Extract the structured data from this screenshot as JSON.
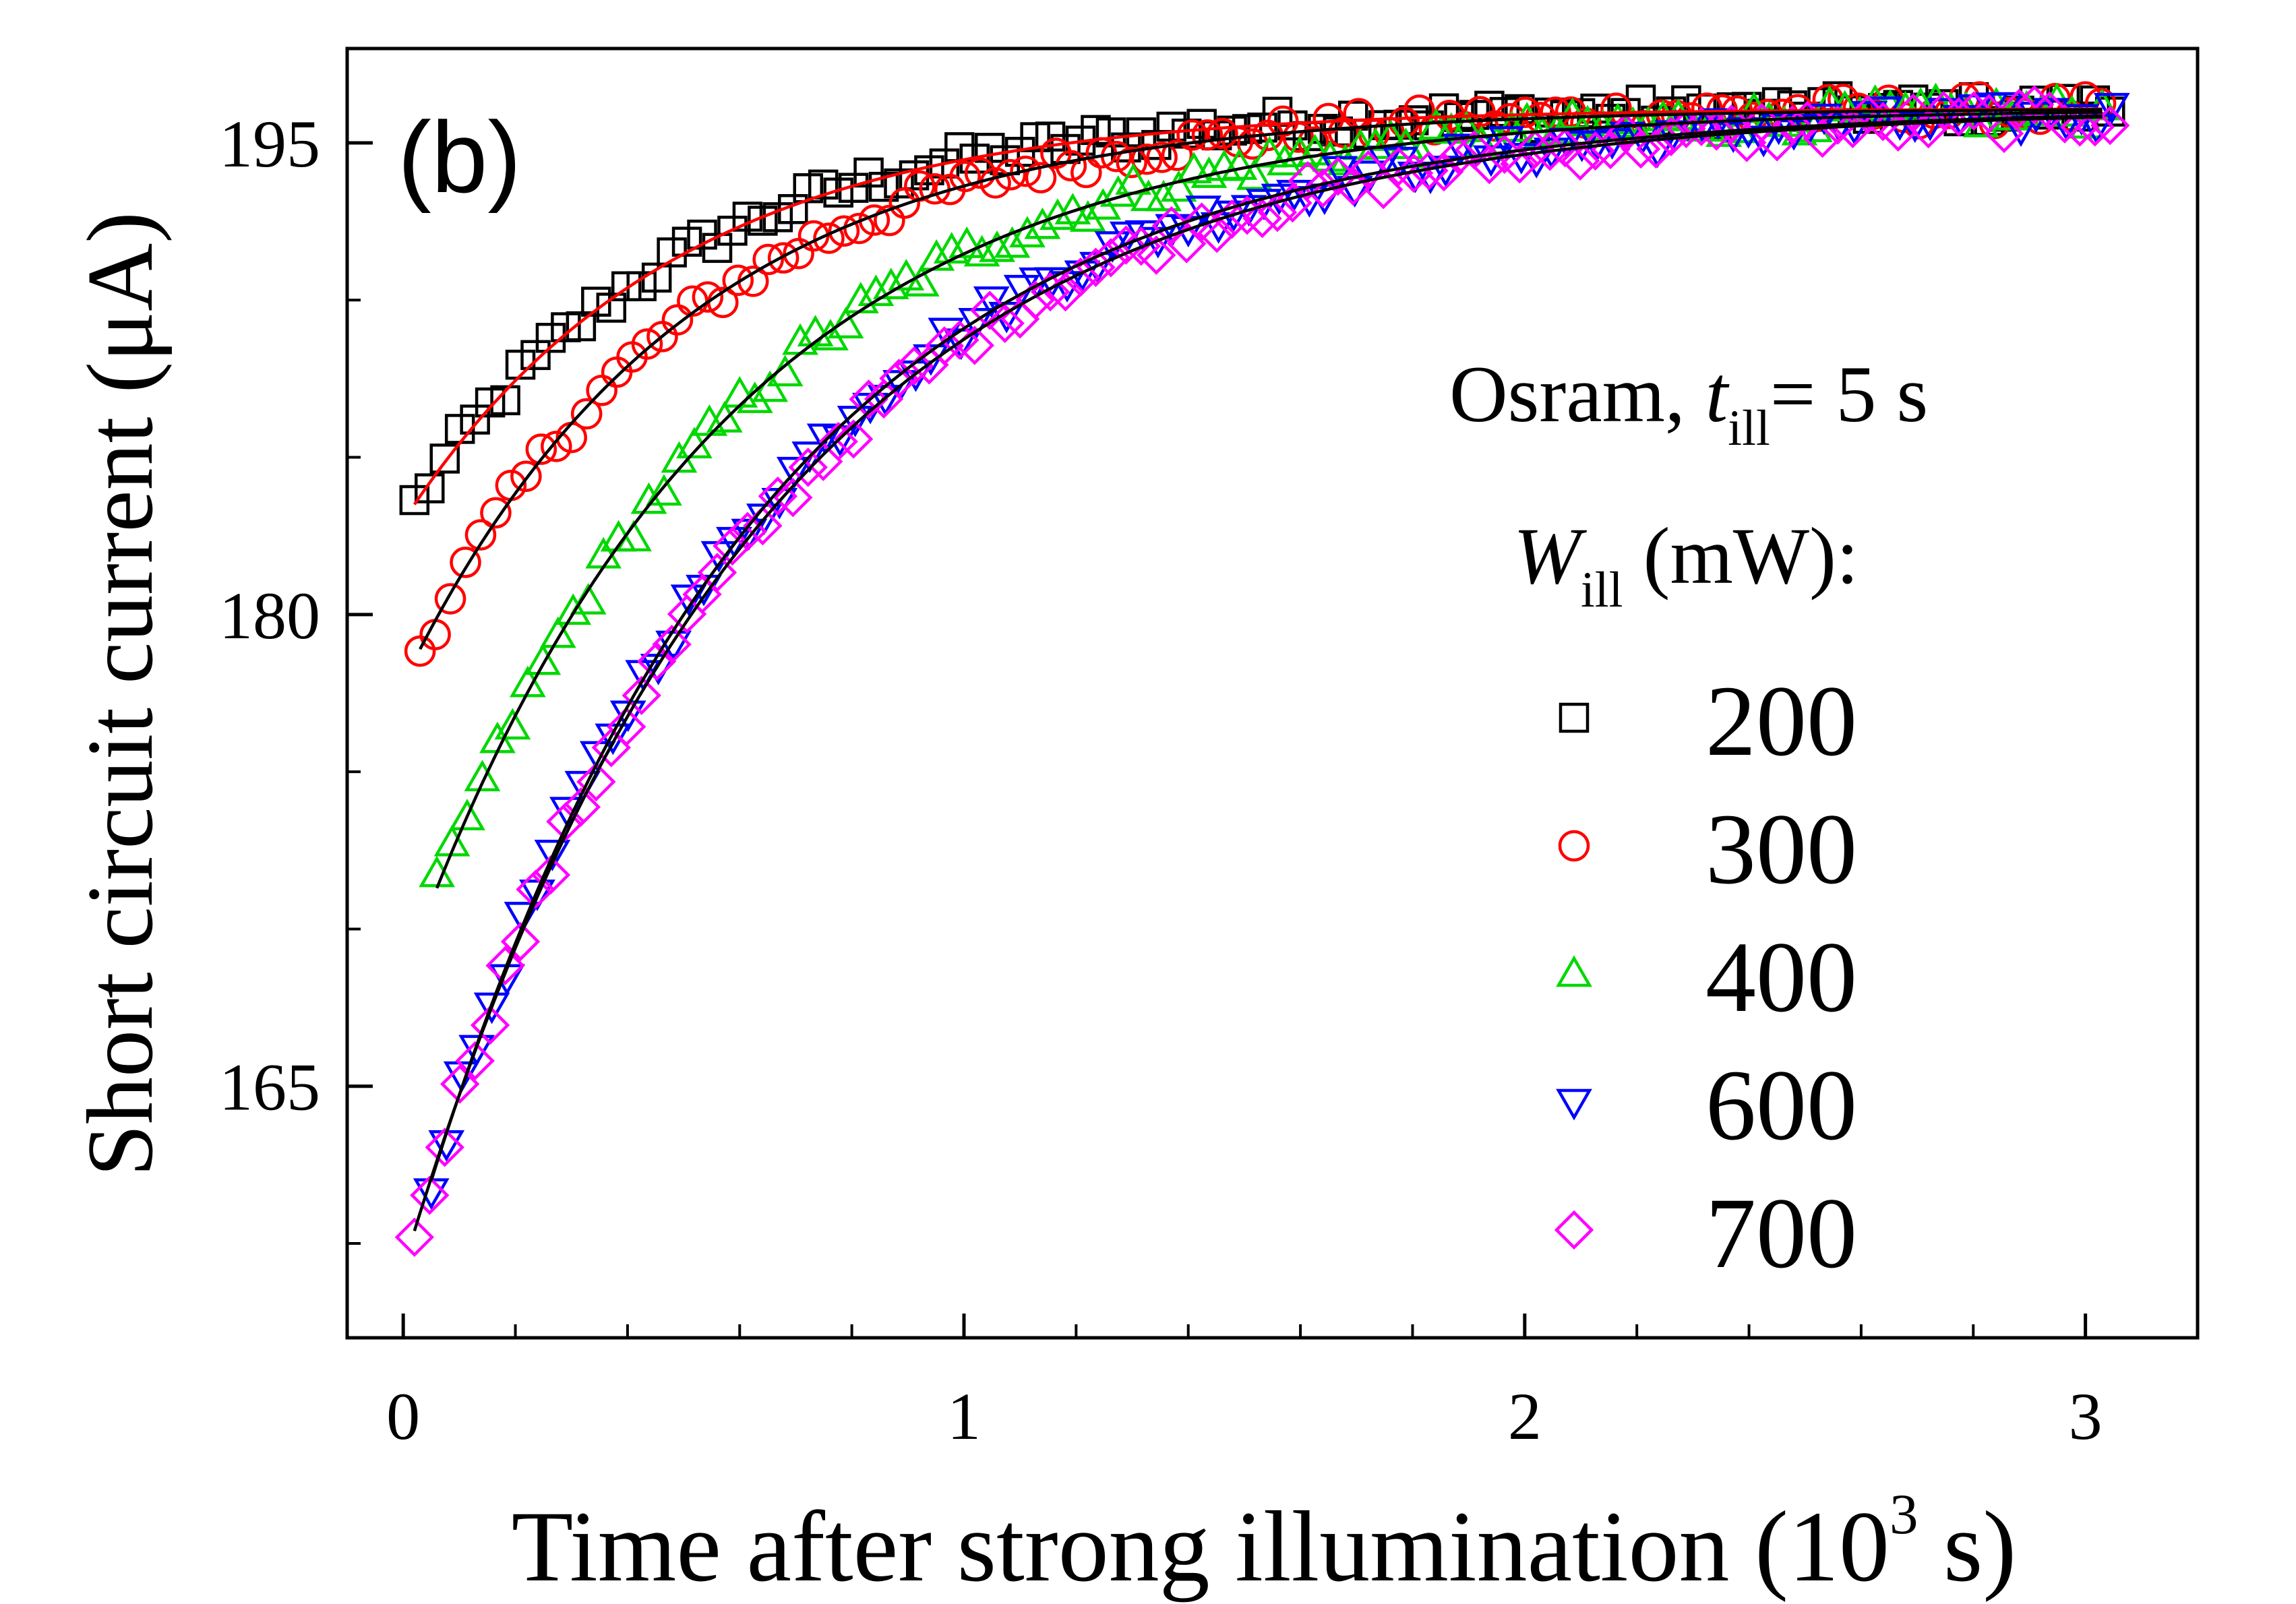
{
  "chart_data": {
    "type": "scatter",
    "panel_label": "(b)",
    "xlabel": "Time after strong illumination (10",
    "xlabel_sup": "3",
    "xlabel_end": " s)",
    "ylabel": "Short circuit current (μA)",
    "xlim": [
      -0.1,
      3.2
    ],
    "ylim": [
      157.0,
      198.0
    ],
    "x_ticks": [
      0,
      1,
      2,
      3
    ],
    "x_tick_labels": [
      "0",
      "1",
      "2",
      "3"
    ],
    "y_ticks": [
      165,
      180,
      195
    ],
    "y_tick_labels": [
      "165",
      "180",
      "195"
    ],
    "legend": {
      "position": "right",
      "title_line1_prefix": "Osram,  ",
      "title_line1_var": "t",
      "title_line1_sub": "ill",
      "title_line1_suffix": "= 5 s",
      "title_line2_var": "W",
      "title_line2_sub": "ill",
      "title_line2_suffix": " (mW):"
    },
    "series": [
      {
        "name": "200",
        "marker": "square",
        "color": "#000000",
        "fit_color": "#ff0000",
        "y0": 183.5,
        "y_inf": 196.1,
        "tau": 0.48,
        "x_start": 0.02
      },
      {
        "name": "300",
        "marker": "circle",
        "color": "#ff0000",
        "fit_color": "#000000",
        "y0": 178.9,
        "y_inf": 196.1,
        "tau": 0.5,
        "x_start": 0.03
      },
      {
        "name": "400",
        "marker": "triangle-up",
        "color": "#00d800",
        "fit_color": "#000000",
        "y0": 171.3,
        "y_inf": 196.1,
        "tau": 0.56,
        "x_start": 0.06
      },
      {
        "name": "600",
        "marker": "triangle-down",
        "color": "#0000ff",
        "fit_color": "#000000",
        "y0": 162.0,
        "y_inf": 196.1,
        "tau": 0.6,
        "x_start": 0.05
      },
      {
        "name": "700",
        "marker": "diamond",
        "color": "#ff00ff",
        "fit_color": "#000000",
        "y0": 160.4,
        "y_inf": 196.1,
        "tau": 0.62,
        "x_start": 0.02
      }
    ]
  }
}
